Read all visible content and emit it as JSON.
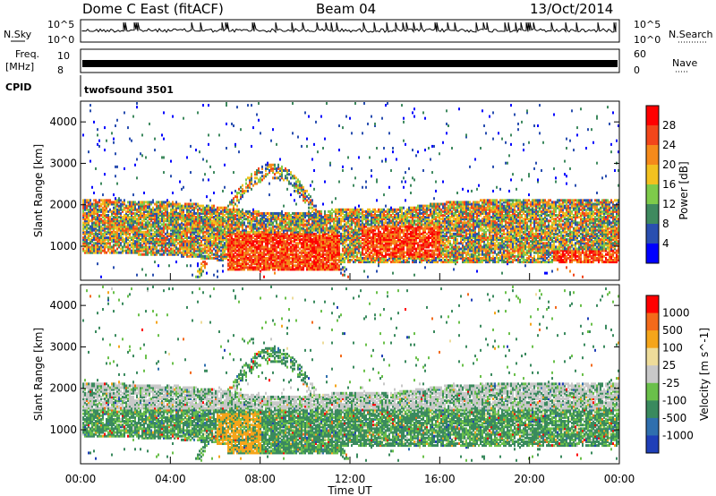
{
  "header": {
    "station": "Dome C East (fitACF)",
    "beam": "Beam 04",
    "date": "13/Oct/2014"
  },
  "panels": {
    "nsky_label": "N.Sky",
    "nsearch_label": "N.Search",
    "nsky_ticks": [
      "10^5",
      "10^0"
    ],
    "nsearch_ticks": [
      "10^5",
      "10^0"
    ],
    "freq_label_1": "Freq.",
    "freq_label_2": "[MHz]",
    "freq_ticks": [
      "10",
      "8"
    ],
    "nave_label": "Nave",
    "nave_ticks": [
      "60",
      "0"
    ],
    "cpid_label": "CPID",
    "cpid_value": "twofsound 3501"
  },
  "colors": {
    "power": [
      "#0000ff",
      "#2a4fb0",
      "#3f8a5f",
      "#7ecb4a",
      "#f2c11f",
      "#f58a1a",
      "#f2461a",
      "#ff0000"
    ],
    "velocity": [
      "#1f3fb8",
      "#2f6fae",
      "#3a8a5e",
      "#6ac04a",
      "#c8c8c8",
      "#eedc9a",
      "#f5a51a",
      "#f36a1a",
      "#ff0000"
    ]
  },
  "chart_data": [
    {
      "type": "heatmap",
      "title": "",
      "xlabel": "Time UT",
      "ylabel": "Slant Range [km]",
      "x_ticks": [
        "00:00",
        "04:00",
        "08:00",
        "12:00",
        "16:00",
        "20:00",
        "00:00"
      ],
      "y_ticks": [
        "1000",
        "2000",
        "3000",
        "4000"
      ],
      "ylim": [
        180,
        4500
      ],
      "colorbar": {
        "label": "Power [dB]",
        "ticks": [
          "28",
          "24",
          "20",
          "16",
          "12",
          "8",
          "4"
        ],
        "range": [
          0,
          32
        ]
      },
      "description_regions": [
        {
          "x_hours": [
            0,
            24
          ],
          "range_km": [
            600,
            2100
          ],
          "level": "mixed 8-24 dB"
        },
        {
          "x_hours": [
            6.5,
            11
          ],
          "range_km": [
            400,
            1200
          ],
          "level": "28+ dB"
        },
        {
          "x_hours": [
            12,
            16
          ],
          "range_km": [
            700,
            1500
          ],
          "level": "20-28 dB"
        }
      ]
    },
    {
      "type": "heatmap",
      "title": "",
      "xlabel": "Time UT",
      "ylabel": "Slant Range [km]",
      "x_ticks": [
        "00:00",
        "04:00",
        "08:00",
        "12:00",
        "16:00",
        "20:00",
        "00:00"
      ],
      "y_ticks": [
        "1000",
        "2000",
        "3000",
        "4000"
      ],
      "ylim": [
        180,
        4500
      ],
      "colorbar": {
        "label": "Velocity [m s^-1]",
        "ticks": [
          "1000",
          "500",
          "100",
          "25",
          "-25",
          "-100",
          "-500",
          "-1000"
        ],
        "range": [
          -1000,
          1000
        ]
      }
    }
  ]
}
